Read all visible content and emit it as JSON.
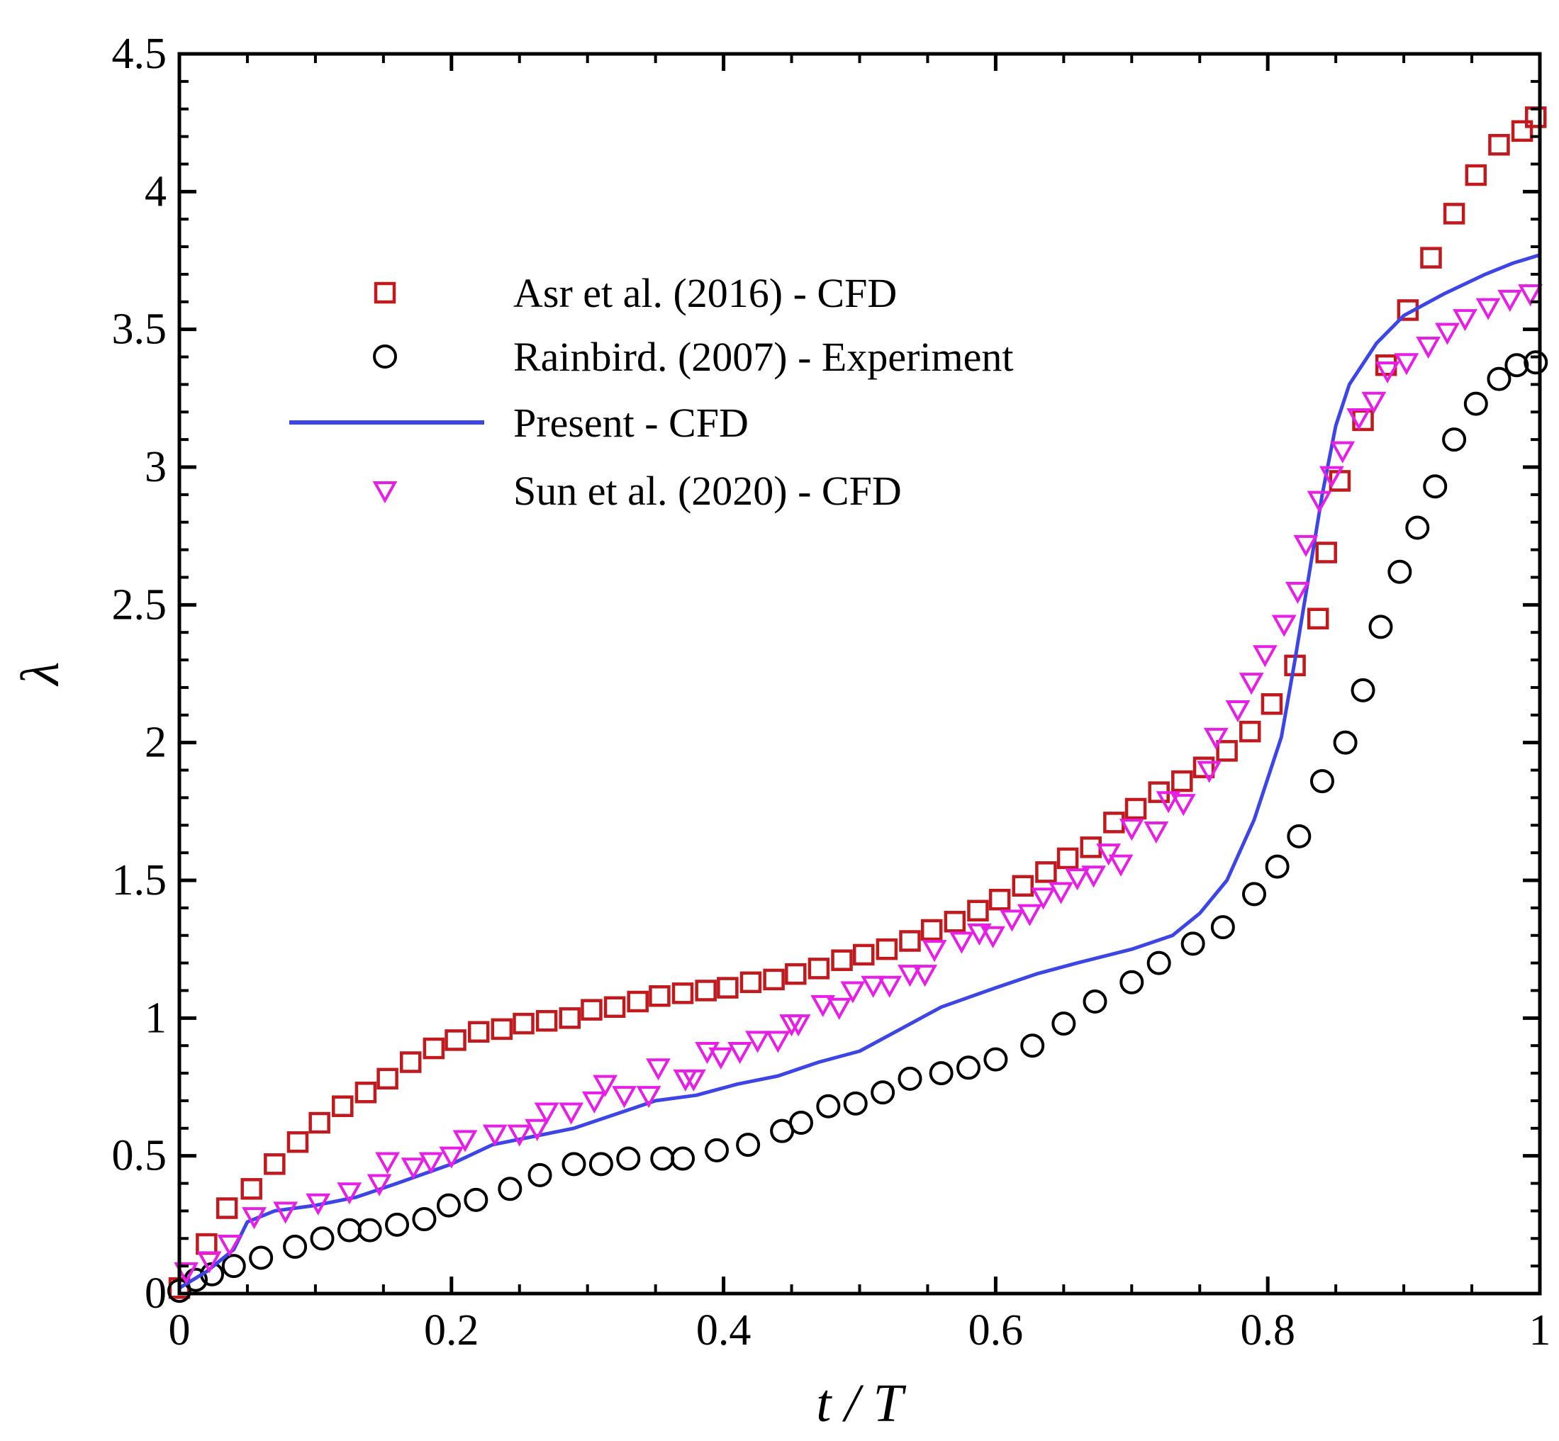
{
  "chart_data": {
    "type": "scatter",
    "title": "",
    "xlabel": "t / T",
    "ylabel": "λ",
    "xlim": [
      0,
      1
    ],
    "ylim": [
      0,
      4.5
    ],
    "xticks": [
      "0",
      "0.2",
      "0.4",
      "0.6",
      "0.8",
      "1"
    ],
    "yticks": [
      "0",
      "0.5",
      "1",
      "1.5",
      "2",
      "2.5",
      "3",
      "3.5",
      "4",
      "4.5"
    ],
    "grid": false,
    "legend_position": "upper-left",
    "series": [
      {
        "name": "Asr et al. (2016) - CFD",
        "marker": "square",
        "color": "#c0191e",
        "x": [
          0.0,
          0.02,
          0.035,
          0.053,
          0.07,
          0.087,
          0.103,
          0.12,
          0.137,
          0.153,
          0.17,
          0.187,
          0.203,
          0.22,
          0.237,
          0.253,
          0.27,
          0.287,
          0.303,
          0.32,
          0.337,
          0.353,
          0.37,
          0.387,
          0.403,
          0.42,
          0.437,
          0.453,
          0.47,
          0.487,
          0.503,
          0.52,
          0.537,
          0.553,
          0.57,
          0.587,
          0.603,
          0.62,
          0.637,
          0.653,
          0.67,
          0.687,
          0.703,
          0.72,
          0.737,
          0.753,
          0.77,
          0.787,
          0.803,
          0.82,
          0.837,
          0.843,
          0.853,
          0.87,
          0.887,
          0.903,
          0.92,
          0.937,
          0.953,
          0.97,
          0.987,
          0.997
        ],
        "y": [
          0.02,
          0.18,
          0.31,
          0.38,
          0.47,
          0.55,
          0.62,
          0.68,
          0.73,
          0.78,
          0.84,
          0.89,
          0.92,
          0.95,
          0.96,
          0.98,
          0.99,
          1.0,
          1.03,
          1.04,
          1.06,
          1.08,
          1.09,
          1.1,
          1.11,
          1.13,
          1.14,
          1.16,
          1.18,
          1.21,
          1.23,
          1.25,
          1.28,
          1.32,
          1.35,
          1.39,
          1.43,
          1.48,
          1.53,
          1.58,
          1.62,
          1.71,
          1.76,
          1.82,
          1.86,
          1.91,
          1.97,
          2.04,
          2.14,
          2.28,
          2.45,
          2.69,
          2.95,
          3.17,
          3.37,
          3.57,
          3.76,
          3.92,
          4.06,
          4.17,
          4.22,
          4.27
        ],
        "note": "last points continue to 4.28 at t/T≈1.0"
      },
      {
        "name": "Rainbird. (2007) - Experiment",
        "marker": "circle",
        "color": "#000000",
        "x": [
          0.0,
          0.012,
          0.024,
          0.04,
          0.06,
          0.085,
          0.105,
          0.125,
          0.14,
          0.16,
          0.18,
          0.198,
          0.218,
          0.243,
          0.265,
          0.29,
          0.31,
          0.33,
          0.355,
          0.37,
          0.395,
          0.418,
          0.443,
          0.457,
          0.477,
          0.497,
          0.517,
          0.537,
          0.56,
          0.58,
          0.6,
          0.627,
          0.65,
          0.673,
          0.7,
          0.72,
          0.745,
          0.767,
          0.79,
          0.807,
          0.823,
          0.84,
          0.857,
          0.87,
          0.883,
          0.897,
          0.91,
          0.923,
          0.937,
          0.953,
          0.97,
          0.983,
          0.997
        ],
        "y": [
          0.01,
          0.05,
          0.07,
          0.1,
          0.13,
          0.17,
          0.2,
          0.23,
          0.23,
          0.25,
          0.27,
          0.32,
          0.34,
          0.38,
          0.43,
          0.47,
          0.47,
          0.49,
          0.49,
          0.49,
          0.52,
          0.54,
          0.59,
          0.62,
          0.68,
          0.69,
          0.73,
          0.78,
          0.8,
          0.82,
          0.85,
          0.9,
          0.98,
          1.06,
          1.13,
          1.2,
          1.27,
          1.33,
          1.45,
          1.55,
          1.66,
          1.86,
          2.0,
          2.19,
          2.42,
          2.62,
          2.78,
          2.93,
          3.1,
          3.23,
          3.32,
          3.37,
          3.38
        ]
      },
      {
        "name": "Present - CFD",
        "marker": "line",
        "color": "#3d45e6",
        "x": [
          0.0,
          0.02,
          0.04,
          0.05,
          0.07,
          0.1,
          0.13,
          0.16,
          0.2,
          0.23,
          0.26,
          0.29,
          0.32,
          0.35,
          0.38,
          0.41,
          0.44,
          0.47,
          0.5,
          0.53,
          0.56,
          0.6,
          0.63,
          0.66,
          0.7,
          0.73,
          0.75,
          0.77,
          0.79,
          0.81,
          0.82,
          0.83,
          0.84,
          0.85,
          0.86,
          0.88,
          0.9,
          0.93,
          0.96,
          0.98,
          1.0
        ],
        "y": [
          0.02,
          0.08,
          0.16,
          0.26,
          0.3,
          0.32,
          0.35,
          0.4,
          0.47,
          0.54,
          0.57,
          0.6,
          0.65,
          0.7,
          0.72,
          0.76,
          0.79,
          0.84,
          0.88,
          0.96,
          1.04,
          1.11,
          1.16,
          1.2,
          1.25,
          1.3,
          1.38,
          1.5,
          1.72,
          2.02,
          2.3,
          2.6,
          2.9,
          3.15,
          3.3,
          3.45,
          3.55,
          3.63,
          3.7,
          3.74,
          3.77
        ]
      },
      {
        "name": "Sun et al. (2020) - CFD",
        "marker": "triangle-down",
        "color": "#e61ee6",
        "x": [
          0.005,
          0.022,
          0.037,
          0.055,
          0.078,
          0.102,
          0.125,
          0.147,
          0.153,
          0.172,
          0.185,
          0.2,
          0.21,
          0.232,
          0.25,
          0.263,
          0.27,
          0.288,
          0.305,
          0.313,
          0.327,
          0.345,
          0.352,
          0.372,
          0.378,
          0.388,
          0.398,
          0.412,
          0.425,
          0.44,
          0.45,
          0.455,
          0.473,
          0.485,
          0.495,
          0.51,
          0.522,
          0.537,
          0.548,
          0.555,
          0.575,
          0.588,
          0.598,
          0.612,
          0.625,
          0.635,
          0.648,
          0.66,
          0.672,
          0.683,
          0.692,
          0.7,
          0.718,
          0.727,
          0.738,
          0.757,
          0.762,
          0.778,
          0.788,
          0.798,
          0.812,
          0.822,
          0.828,
          0.838,
          0.847,
          0.855,
          0.867,
          0.878,
          0.888,
          0.902,
          0.918,
          0.932,
          0.945,
          0.962,
          0.978,
          0.993
        ],
        "y": [
          0.08,
          0.12,
          0.18,
          0.28,
          0.3,
          0.33,
          0.37,
          0.4,
          0.48,
          0.46,
          0.48,
          0.5,
          0.56,
          0.58,
          0.58,
          0.6,
          0.66,
          0.66,
          0.7,
          0.76,
          0.72,
          0.72,
          0.82,
          0.78,
          0.78,
          0.88,
          0.86,
          0.88,
          0.92,
          0.92,
          0.98,
          0.98,
          1.05,
          1.04,
          1.1,
          1.12,
          1.12,
          1.16,
          1.16,
          1.25,
          1.28,
          1.31,
          1.3,
          1.36,
          1.38,
          1.44,
          1.46,
          1.51,
          1.52,
          1.6,
          1.56,
          1.69,
          1.68,
          1.79,
          1.78,
          1.9,
          2.02,
          2.12,
          2.22,
          2.32,
          2.43,
          2.55,
          2.72,
          2.88,
          2.97,
          3.06,
          3.18,
          3.24,
          3.35,
          3.38,
          3.44,
          3.49,
          3.54,
          3.58,
          3.61,
          3.63
        ]
      }
    ]
  }
}
